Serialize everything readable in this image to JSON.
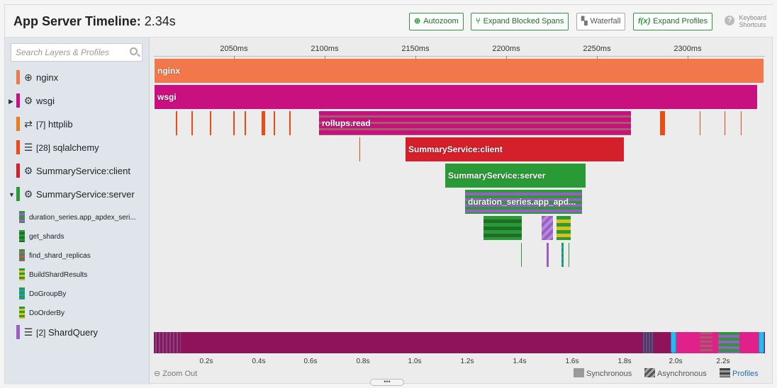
{
  "header": {
    "title_bold": "App Server Timeline:",
    "title_value": "2.34s",
    "buttons": {
      "autozoom": "Autozoom",
      "expand_blocked": "Expand Blocked Spans",
      "waterfall": "Waterfall",
      "expand_profiles": "Expand Profiles",
      "fx": "f(x)"
    },
    "keyboard_line1": "Keyboard",
    "keyboard_line2": "Shortcuts"
  },
  "search": {
    "placeholder": "Search Layers & Profiles"
  },
  "layers": [
    {
      "label": "nginx",
      "count": "",
      "color": "#f2784b",
      "icon": "globe-icon"
    },
    {
      "label": "wsgi",
      "count": "",
      "color": "#c8107e",
      "icon": "gears-icon"
    },
    {
      "label": "httplib",
      "count": "[7]",
      "color": "#f07a1a",
      "icon": "arrows-icon"
    },
    {
      "label": "sqlalchemy",
      "count": "[28]",
      "color": "#f04a12",
      "icon": "database-icon"
    },
    {
      "label": "SummaryService:client",
      "count": "",
      "color": "#d4202a",
      "icon": "gears-icon"
    },
    {
      "label": "SummaryService:server",
      "count": "",
      "color": "#2a9a36",
      "icon": "gears-icon"
    }
  ],
  "profiles": [
    {
      "label": "duration_series.app_apdex_seri..."
    },
    {
      "label": "get_shards"
    },
    {
      "label": "find_shard_replicas"
    },
    {
      "label": "BuildShardResults"
    },
    {
      "label": "DoGroupBy"
    },
    {
      "label": "DoOrderBy"
    }
  ],
  "shardquery": {
    "label": "ShardQuery",
    "count": "[2]",
    "color": "#9a5fc6",
    "icon": "database-icon"
  },
  "timeline": {
    "ticks": [
      "2050ms",
      "2100ms",
      "2150ms",
      "2200ms",
      "2250ms",
      "2300ms"
    ],
    "spans": {
      "nginx": "nginx",
      "wsgi": "wsgi",
      "rollups": "rollups.read",
      "client": "SummaryService:client",
      "server": "SummaryService:server",
      "duration": "duration_series.app_apd..."
    }
  },
  "overview": {
    "ticks": [
      "0.2s",
      "0.4s",
      "0.6s",
      "0.8s",
      "1.0s",
      "1.2s",
      "1.4s",
      "1.6s",
      "1.8s",
      "2.0s",
      "2.2s"
    ]
  },
  "footer": {
    "zoom_out": "Zoom Out",
    "legend_sync": "Synchronous",
    "legend_async": "Asynchronous",
    "legend_profiles": "Profiles"
  }
}
